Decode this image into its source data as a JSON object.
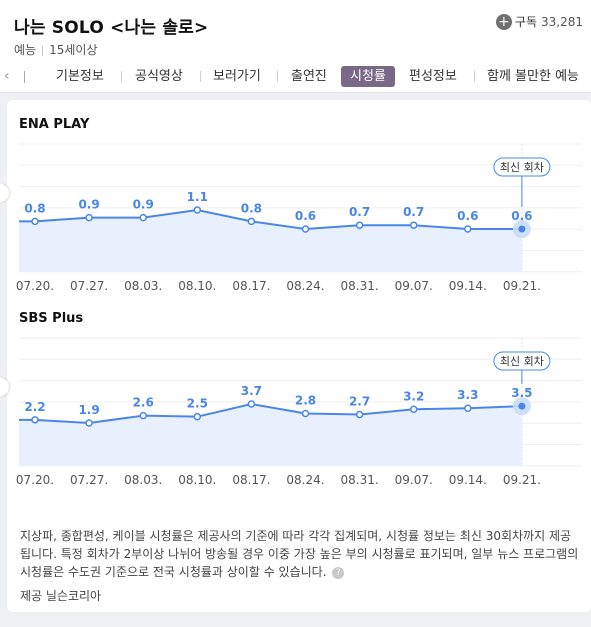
{
  "header": {
    "title": "나는 SOLO <나는 솔로>",
    "genre": "예능",
    "rating": "15세이상",
    "subscribe_label": "구독",
    "subscribe_count": "33,281"
  },
  "tabs": {
    "items": [
      "기본정보",
      "공식영상",
      "보러가기",
      "출연진",
      "시청률",
      "편성정보",
      "함께 볼만한 예능"
    ],
    "active": "시청률"
  },
  "latest_badge": "최신 회차",
  "chart_data": [
    {
      "type": "line",
      "title": "ENA PLAY",
      "categories": [
        "07.20.",
        "07.27.",
        "08.03.",
        "08.10.",
        "08.17.",
        "08.24.",
        "08.31.",
        "09.07.",
        "09.14.",
        "09.21."
      ],
      "values": [
        0.8,
        0.9,
        0.9,
        1.1,
        0.8,
        0.6,
        0.7,
        0.7,
        0.6,
        0.6
      ],
      "labels": [
        "0.8",
        "0.9",
        "0.9",
        "1.1",
        "0.8",
        "0.6",
        "0.7",
        "0.7",
        "0.6",
        "0.6"
      ],
      "grid": true,
      "color": "#4a86e8",
      "fill": "#e8f0fd"
    },
    {
      "type": "line",
      "title": "SBS Plus",
      "categories": [
        "07.20.",
        "07.27.",
        "08.03.",
        "08.10.",
        "08.17.",
        "08.24.",
        "08.31.",
        "09.07.",
        "09.14.",
        "09.21."
      ],
      "values": [
        2.2,
        1.9,
        2.6,
        2.5,
        3.7,
        2.8,
        2.7,
        3.2,
        3.3,
        3.5
      ],
      "labels": [
        "2.2",
        "1.9",
        "2.6",
        "2.5",
        "3.7",
        "2.8",
        "2.7",
        "3.2",
        "3.3",
        "3.5"
      ],
      "grid": true,
      "color": "#4a86e8",
      "fill": "#e8f0fd"
    }
  ],
  "notes": {
    "text": "지상파, 종합편성, 케이블 시청률은 제공사의 기준에 따라 각각 집계되며, 시청률 정보는 최신 30회차까지 제공됩니다. 특정 회차가 2부이상 나뉘어 방송될 경우 이중 가장 높은 부의 시청률로 표기되며, 일부 뉴스 프로그램의 시청률은 수도권 기준으로 전국 시청률과 상이할 수 있습니다.",
    "source": "제공 닐슨코리아"
  }
}
